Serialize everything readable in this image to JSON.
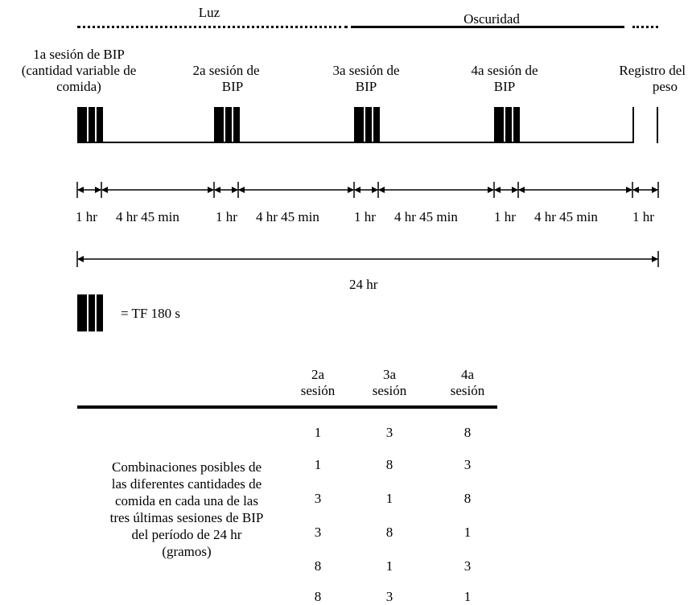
{
  "phases": {
    "light": "Luz",
    "dark": "Oscuridad"
  },
  "sessions": {
    "s1": [
      "1a sesión de BIP",
      "(cantidad variable de",
      "comida)"
    ],
    "s2": [
      "2a sesión de",
      "BIP"
    ],
    "s3": [
      "3a sesión de",
      "BIP"
    ],
    "s4": [
      "4a sesión de",
      "BIP"
    ],
    "weight": [
      "Registro del",
      "peso"
    ]
  },
  "intervals": [
    "1 hr",
    "4 hr 45 min",
    "1 hr",
    "4 hr 45 min",
    "1 hr",
    "4 hr 45 min",
    "1 hr",
    "4 hr 45 min",
    "1 hr"
  ],
  "total_label": "24 hr",
  "legend_label": "= TF 180 s",
  "table": {
    "headers": [
      [
        "2a",
        "sesión"
      ],
      [
        "3a",
        "sesión"
      ],
      [
        "4a",
        "sesión"
      ]
    ],
    "rows": [
      [
        1,
        3,
        8
      ],
      [
        1,
        8,
        3
      ],
      [
        3,
        1,
        8
      ],
      [
        3,
        8,
        1
      ],
      [
        8,
        1,
        3
      ],
      [
        8,
        3,
        1
      ]
    ],
    "description": [
      "Combinaciones posibles de",
      "las diferentes cantidades de",
      "comida en cada una de las",
      "tres últimas sesiones de BIP",
      "del período de 24 hr",
      "(gramos)"
    ]
  }
}
